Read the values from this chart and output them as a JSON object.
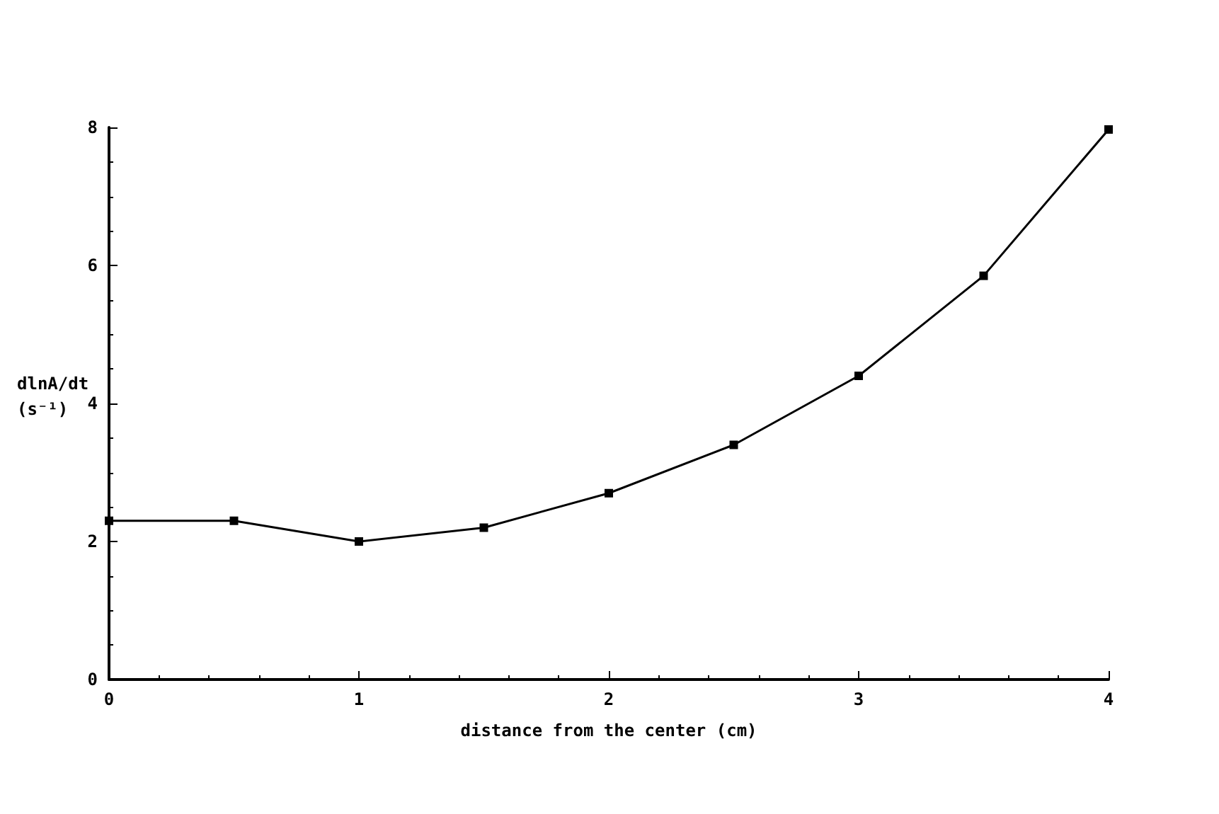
{
  "chart_data": {
    "type": "line",
    "xlabel": "distance from the center (cm)",
    "ylabel": "dlnA/dt (s⁻¹)",
    "x": [
      0,
      0.5,
      1,
      1.5,
      2,
      2.5,
      3,
      3.5,
      4
    ],
    "series": [
      {
        "color": "#000000",
        "values": [
          2.3,
          2.3,
          2.0,
          2.2,
          2.7,
          3.4,
          4.4,
          5.85,
          7.97
        ]
      }
    ],
    "xlim": [
      0,
      4
    ],
    "xticks": [
      0,
      1,
      2,
      3,
      4
    ],
    "ylim": [
      0,
      8
    ],
    "yticks": [
      0,
      2,
      4,
      6,
      8
    ],
    "grid": false,
    "marker": "square",
    "line_style": "solid"
  }
}
